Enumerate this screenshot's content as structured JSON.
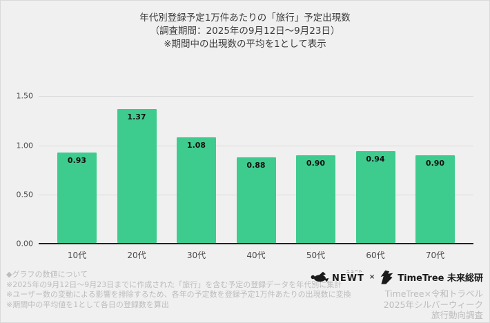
{
  "title": {
    "line1": "年代別登録予定1万件あたりの「旅行」予定出現数",
    "line2": "（調査期間：2025年の9月12日〜9月23日）",
    "line3": "※期間中の出現数の平均を1として表示"
  },
  "chart_data": {
    "type": "bar",
    "title": "年代別登録予定1万件あたりの「旅行」予定出現数",
    "subtitle": "（調査期間：2025年の9月12日〜9月23日）※期間中の出現数の平均を1として表示",
    "categories": [
      "10代",
      "20代",
      "30代",
      "40代",
      "50代",
      "60代",
      "70代"
    ],
    "values": [
      0.93,
      1.37,
      1.08,
      0.88,
      0.9,
      0.94,
      0.9
    ],
    "value_labels": [
      "0.93",
      "1.37",
      "1.08",
      "0.88",
      "0.90",
      "0.94",
      "0.90"
    ],
    "xlabel": "",
    "ylabel": "",
    "ylim": [
      0,
      1.5
    ],
    "yticks": [
      "1.50",
      "1.00",
      "0.50",
      "0.00"
    ],
    "grid": true,
    "legend": "none",
    "bar_color": "#3ecb8e",
    "background_color": "#f0f0f0"
  },
  "footnotes": {
    "heading": "◆グラフの数値について",
    "line1": "※2025年の9月12日〜9月23日までに作成された「旅行」を含む予定の登録データを年代別に集計",
    "line2": "※ユーザー数の変動による影響を排除するため、各年の予定数を登録予定1万件あたりの出現数に変換",
    "line3": "※期間中の平均値を1として各日の登録数を算出"
  },
  "branding": {
    "newt_furigana": "ニュート",
    "newt_label": "NEWT",
    "cross": "×",
    "timetree_label": "TimeTree 未来総研",
    "attribution_line1": "TimeTree×令和トラベル",
    "attribution_line2": "2025年シルバーウィーク",
    "attribution_line3": "旅行動向調査"
  }
}
